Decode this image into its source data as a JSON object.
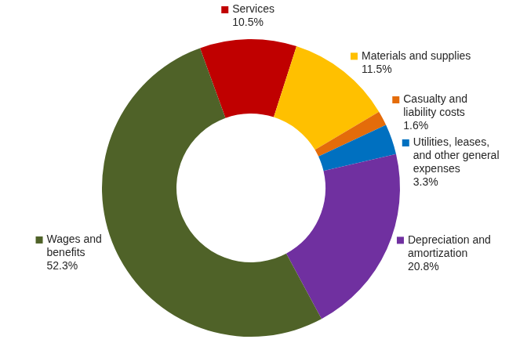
{
  "chart_data": {
    "type": "doughnut",
    "categories": [
      "Services",
      "Materials and supplies",
      "Casualty and liability costs",
      "Utilities, leases, and other general expenses",
      "Depreciation and amortization",
      "Wages and benefits"
    ],
    "values": [
      10.5,
      11.5,
      1.6,
      3.3,
      20.8,
      52.3
    ],
    "value_labels": [
      "10.5%",
      "11.5%",
      "1.6%",
      "3.3%",
      "20.8%",
      "52.3%"
    ],
    "colors": [
      "#c00000",
      "#ffc000",
      "#e46c0a",
      "#0070c0",
      "#7030a0",
      "#4f6228"
    ],
    "data_labels": true
  }
}
